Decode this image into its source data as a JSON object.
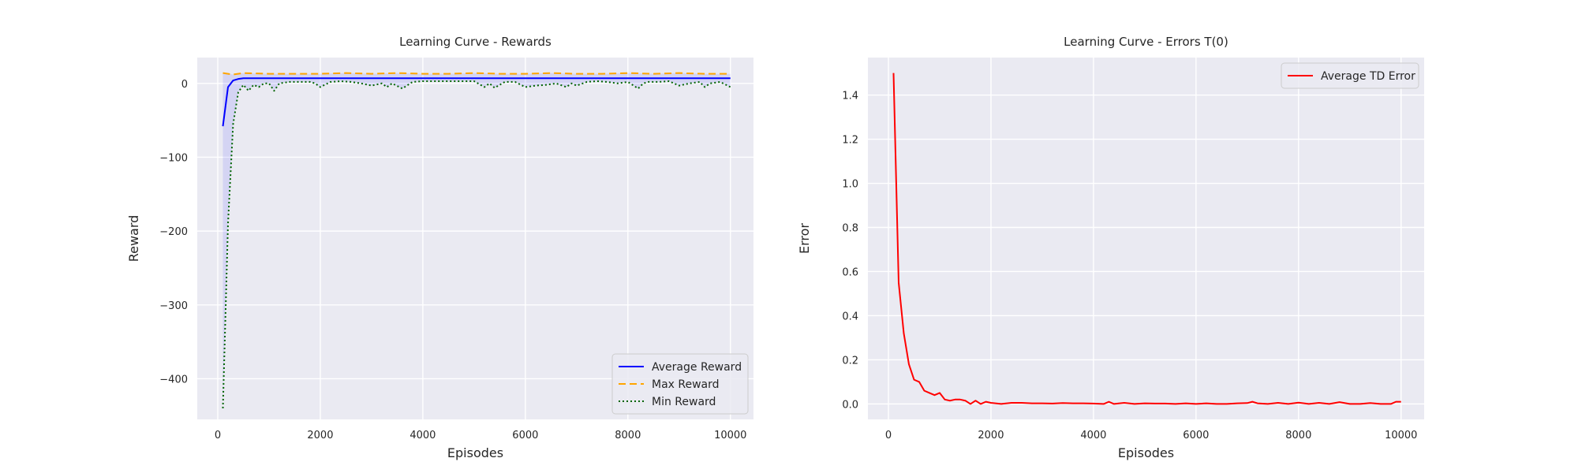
{
  "colors": {
    "axes_bg": "#EAEAF2",
    "grid": "#FFFFFF",
    "average": "#0000FF",
    "max": "#FFA500",
    "min": "#006400",
    "band": "#0000FF",
    "error": "#FF0000"
  },
  "chart_data": [
    {
      "type": "line",
      "title": "Learning Curve - Rewards",
      "xlabel": "Episodes",
      "ylabel": "Reward",
      "xlim": [
        -400,
        10450
      ],
      "ylim": [
        -455,
        35
      ],
      "xticks": [
        0,
        2000,
        4000,
        6000,
        8000,
        10000
      ],
      "xtick_labels": [
        "0",
        "2000",
        "4000",
        "6000",
        "8000",
        "10000"
      ],
      "yticks": [
        0,
        -100,
        -200,
        -300,
        -400
      ],
      "ytick_labels": [
        "0",
        "−100",
        "−200",
        "−300",
        "−400"
      ],
      "grid": true,
      "legend_position": "lower-right",
      "fill_between": [
        "Min Reward",
        "Max Reward"
      ],
      "series": [
        {
          "name": "Average Reward",
          "style": "solid",
          "color": "#0000FF",
          "x": [
            100,
            200,
            300,
            400,
            500,
            700,
            1000,
            1500,
            2000,
            3000,
            4000,
            5000,
            6000,
            7000,
            8000,
            9000,
            10000
          ],
          "y": [
            -58,
            -5,
            4,
            6,
            7,
            7,
            7,
            7,
            7,
            7,
            7,
            7,
            7,
            7,
            7,
            7,
            7
          ]
        },
        {
          "name": "Max Reward",
          "style": "dashed",
          "color": "#FFA500",
          "x": [
            100,
            300,
            500,
            1000,
            1500,
            2000,
            2500,
            3000,
            3500,
            4000,
            4500,
            5000,
            5500,
            6000,
            6500,
            7000,
            7500,
            8000,
            8500,
            9000,
            9500,
            10000
          ],
          "y": [
            14,
            12,
            14,
            13,
            13,
            13,
            14,
            13,
            14,
            13,
            13,
            14,
            13,
            13,
            14,
            13,
            13,
            14,
            13,
            14,
            13,
            13
          ]
        },
        {
          "name": "Min Reward",
          "style": "dotted",
          "color": "#006400",
          "x": [
            100,
            200,
            300,
            400,
            500,
            600,
            700,
            800,
            900,
            1000,
            1100,
            1200,
            1400,
            1600,
            1800,
            1900,
            2000,
            2200,
            2400,
            2600,
            2800,
            3000,
            3200,
            3300,
            3400,
            3600,
            3800,
            4000,
            4200,
            4400,
            4600,
            4800,
            5000,
            5200,
            5300,
            5400,
            5600,
            5800,
            6000,
            6200,
            6400,
            6600,
            6800,
            6900,
            7000,
            7200,
            7400,
            7600,
            7800,
            8000,
            8200,
            8300,
            8400,
            8600,
            8800,
            9000,
            9200,
            9400,
            9500,
            9600,
            9800,
            10000
          ],
          "y": [
            -440,
            -190,
            -55,
            -12,
            -2,
            -10,
            -2,
            -5,
            0,
            0,
            -10,
            0,
            2,
            2,
            2,
            0,
            -5,
            2,
            3,
            2,
            0,
            -3,
            0,
            -5,
            0,
            -7,
            2,
            3,
            3,
            3,
            3,
            3,
            3,
            -5,
            0,
            -6,
            2,
            2,
            -5,
            -3,
            -2,
            0,
            -5,
            0,
            -3,
            2,
            3,
            2,
            0,
            2,
            -7,
            0,
            2,
            2,
            3,
            -3,
            0,
            2,
            -5,
            0,
            2,
            -5
          ]
        }
      ]
    },
    {
      "type": "line",
      "title": "Learning Curve - Errors T(0)",
      "xlabel": "Episodes",
      "ylabel": "Error",
      "xlim": [
        -400,
        10450
      ],
      "ylim": [
        -0.07,
        1.57
      ],
      "xticks": [
        0,
        2000,
        4000,
        6000,
        8000,
        10000
      ],
      "xtick_labels": [
        "0",
        "2000",
        "4000",
        "6000",
        "8000",
        "10000"
      ],
      "yticks": [
        0.0,
        0.2,
        0.4,
        0.6,
        0.8,
        1.0,
        1.2,
        1.4
      ],
      "ytick_labels": [
        "0.0",
        "0.2",
        "0.4",
        "0.6",
        "0.8",
        "1.0",
        "1.2",
        "1.4"
      ],
      "grid": true,
      "legend_position": "upper-right",
      "series": [
        {
          "name": "Average TD Error",
          "style": "solid",
          "color": "#FF0000",
          "x": [
            100,
            200,
            300,
            400,
            500,
            600,
            700,
            800,
            900,
            1000,
            1100,
            1200,
            1300,
            1400,
            1500,
            1600,
            1700,
            1800,
            1900,
            2000,
            2200,
            2400,
            2600,
            2800,
            3000,
            3200,
            3400,
            3600,
            3800,
            4000,
            4200,
            4300,
            4400,
            4600,
            4800,
            5000,
            5200,
            5400,
            5600,
            5800,
            6000,
            6200,
            6400,
            6600,
            6800,
            7000,
            7100,
            7200,
            7400,
            7600,
            7800,
            8000,
            8200,
            8400,
            8600,
            8800,
            9000,
            9200,
            9400,
            9600,
            9800,
            9900,
            10000
          ],
          "y": [
            1.5,
            0.55,
            0.32,
            0.18,
            0.11,
            0.1,
            0.06,
            0.05,
            0.04,
            0.05,
            0.02,
            0.015,
            0.02,
            0.02,
            0.015,
            0.0,
            0.015,
            0.0,
            0.01,
            0.005,
            0.0,
            0.005,
            0.005,
            0.003,
            0.003,
            0.002,
            0.004,
            0.003,
            0.003,
            0.002,
            0.0,
            0.01,
            0.0,
            0.005,
            0.0,
            0.003,
            0.002,
            0.002,
            0.0,
            0.003,
            0.0,
            0.003,
            0.0,
            0.0,
            0.003,
            0.004,
            0.01,
            0.003,
            0.0,
            0.005,
            0.0,
            0.006,
            0.0,
            0.005,
            0.0,
            0.008,
            0.0,
            0.0,
            0.004,
            0.0,
            0.0,
            0.01,
            0.01
          ]
        }
      ]
    }
  ]
}
